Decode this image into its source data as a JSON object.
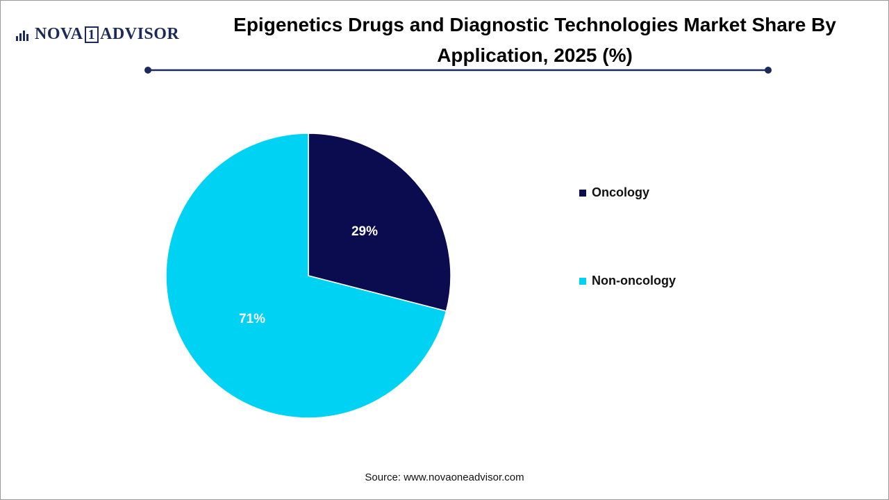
{
  "logo": {
    "left": "NOVA",
    "mark": "1",
    "right": "ADVISOR"
  },
  "source": "Source: www.novaoneadvisor.com",
  "chart_data": {
    "type": "pie",
    "title": "Epigenetics Drugs and Diagnostic Technologies Market Share By Application, 2025 (%)",
    "categories": [
      "Oncology",
      "Non-oncology"
    ],
    "values": [
      29,
      71
    ],
    "value_labels": [
      "29%",
      "71%"
    ],
    "colors": [
      "#0b0b4f",
      "#00d2f4"
    ],
    "legend": "right"
  }
}
